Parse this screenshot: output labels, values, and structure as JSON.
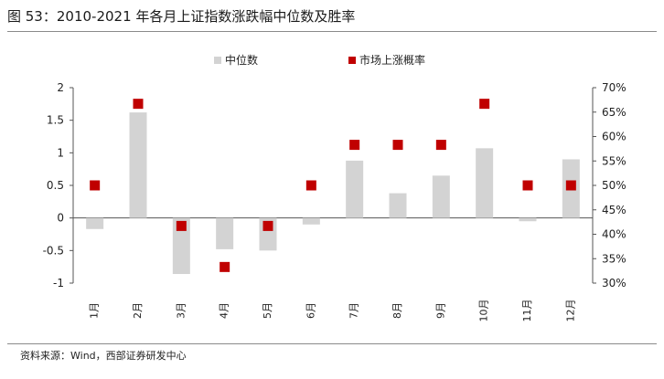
{
  "title": "图 53：2010-2021 年各月上证指数涨跌幅中位数及胜率",
  "source": "资料来源：Wind，西部证券研发中心",
  "colors": {
    "bar": "#d3d3d3",
    "marker": "#c00000"
  },
  "chart_data": {
    "type": "bar",
    "categories": [
      "1月",
      "2月",
      "3月",
      "4月",
      "5月",
      "6月",
      "7月",
      "8月",
      "9月",
      "10月",
      "11月",
      "12月"
    ],
    "series": [
      {
        "name": "中位数",
        "type": "bar",
        "axis": "left",
        "values": [
          -0.17,
          1.62,
          -0.86,
          -0.48,
          -0.5,
          -0.1,
          0.88,
          0.38,
          0.65,
          1.07,
          -0.05,
          0.9
        ]
      },
      {
        "name": "市场上涨概率",
        "type": "scatter",
        "axis": "right",
        "unit": "%",
        "values": [
          50,
          66.7,
          41.7,
          33.3,
          41.7,
          50,
          58.3,
          58.3,
          58.3,
          66.7,
          50,
          50
        ]
      }
    ],
    "y_left": {
      "ylim": [
        -1,
        2
      ],
      "ticks": [
        "-1",
        "-0.5",
        "0",
        "0.5",
        "1",
        "1.5",
        "2"
      ]
    },
    "y_right": {
      "ylim": [
        30,
        70
      ],
      "ticks": [
        "30%",
        "35%",
        "40%",
        "45%",
        "50%",
        "55%",
        "60%",
        "65%",
        "70%"
      ]
    },
    "grid": false,
    "legend_position": "top"
  }
}
